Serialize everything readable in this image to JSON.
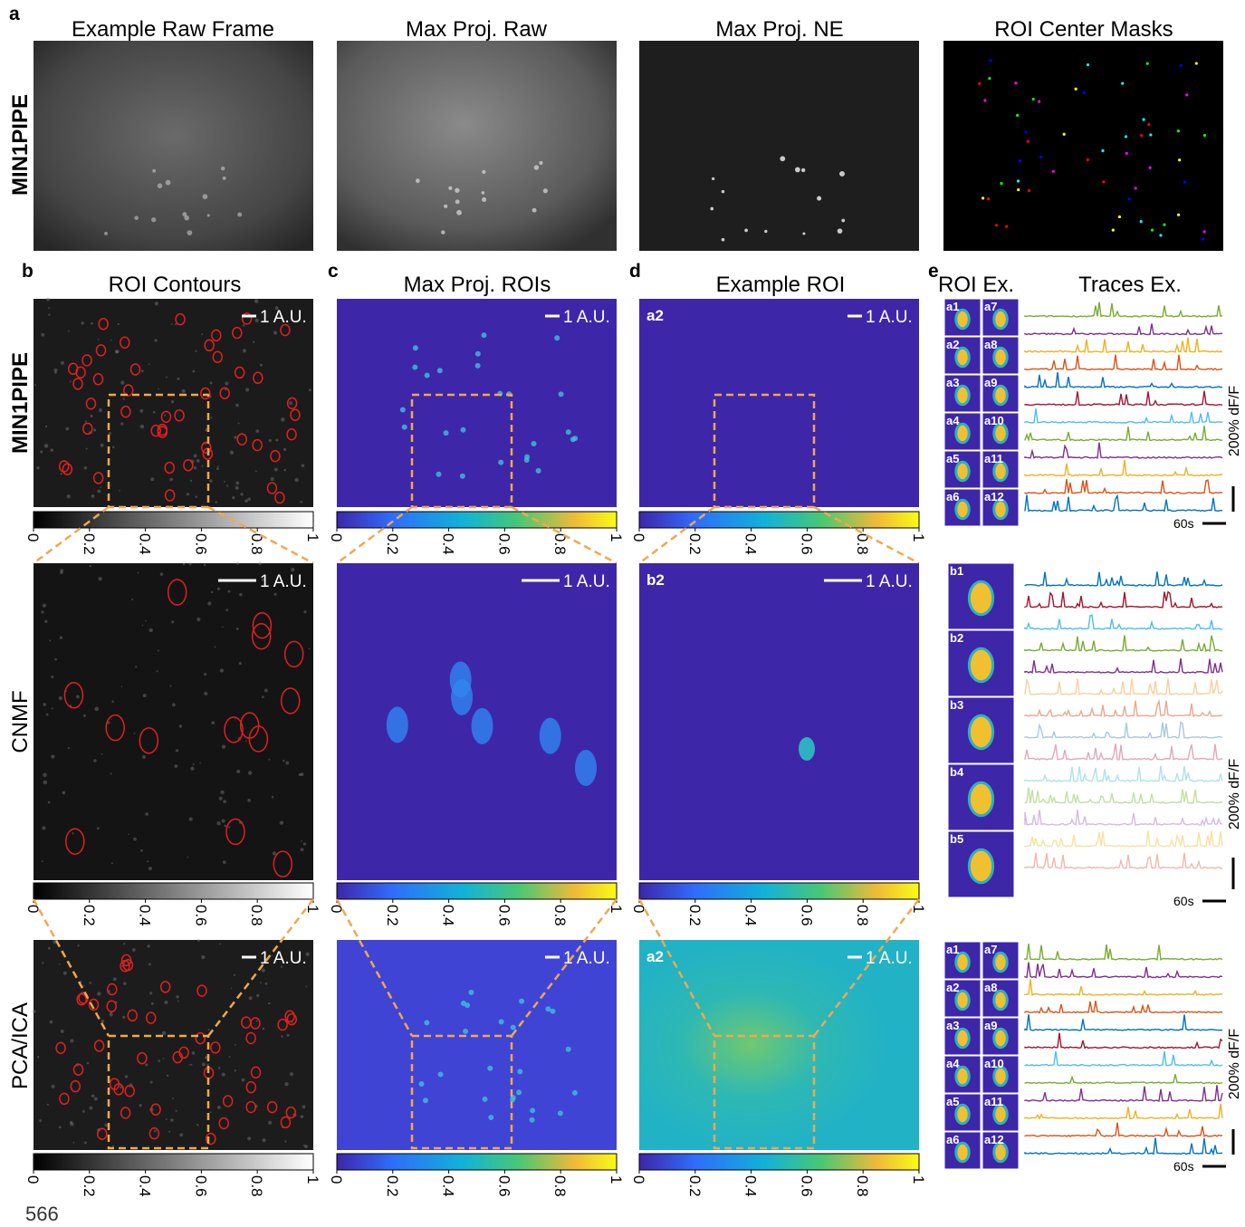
{
  "panel_letters": [
    "a",
    "b",
    "c",
    "d",
    "e"
  ],
  "row_labels": [
    "MIN1PIPE",
    "CNMF",
    "PCA/ICA"
  ],
  "titles": {
    "a": [
      "Example Raw Frame",
      "Max Proj. Raw",
      "Max Proj. NE",
      "ROI Center Masks"
    ],
    "b": "ROI Contours",
    "c": "Max Proj. ROIs",
    "d": "Example ROI",
    "e": [
      "ROI Ex.",
      "Traces Ex."
    ]
  },
  "scale_bar": "1 A.U.",
  "example_roi_labels": [
    "a2",
    "b2",
    "a2"
  ],
  "colorbar_ticks": [
    0,
    0.2,
    0.4,
    0.6,
    0.8,
    1
  ],
  "roi_tiles": {
    "a": [
      "a1",
      "a2",
      "a3",
      "a4",
      "a5",
      "a6",
      "a7",
      "a8",
      "a9",
      "a10",
      "a11",
      "a12"
    ],
    "b": [
      "b1",
      "b2",
      "b3",
      "b4",
      "b5"
    ]
  },
  "trace_scale": {
    "amplitude": "200% dF/F",
    "time": "60s"
  },
  "page_number": "566"
}
